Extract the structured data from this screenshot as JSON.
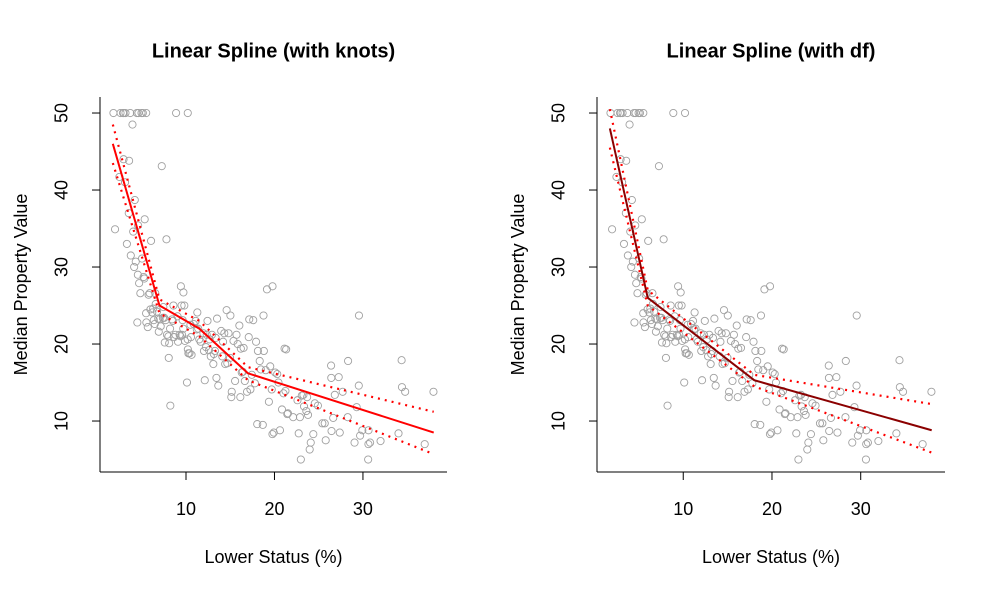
{
  "chart_data": [
    {
      "type": "scatter",
      "title": "Linear Spline (with knots)",
      "xlabel": "Lower Status (%)",
      "ylabel": "Median Property Value",
      "xlim": [
        0.28,
        39.5
      ],
      "ylim": [
        3.38,
        52.08
      ],
      "xticks": [
        10,
        20,
        30
      ],
      "yticks": [
        10,
        20,
        30,
        40,
        50
      ],
      "point_color": "#a0a0a0",
      "x": [
        1.98,
        2.47,
        2.88,
        2.94,
        2.96,
        3.11,
        3.16,
        3.32,
        3.53,
        3.57,
        3.76,
        3.95,
        4.03,
        4.14,
        4.21,
        4.32,
        4.45,
        4.5,
        4.56,
        4.59,
        4.63,
        4.7,
        4.84,
        4.97,
        5.03,
        5.12,
        5.21,
        5.29,
        5.33,
        5.49,
        5.52,
        5.68,
        5.77,
        5.89,
        5.98,
        6.05,
        6.19,
        6.29,
        6.36,
        6.47,
        6.53,
        6.58,
        6.72,
        6.86,
        6.92,
        7.02,
        7.14,
        7.26,
        7.39,
        7.44,
        7.54,
        7.6,
        7.7,
        7.79,
        7.85,
        8.01,
        8.05,
        8.1,
        8.2,
        8.23,
        8.43,
        8.51,
        8.58,
        8.65,
        8.81,
        8.88,
        9.04,
        9.1,
        9.28,
        9.38,
        9.42,
        9.5,
        9.55,
        9.62,
        9.69,
        9.71,
        9.81,
        9.88,
        10.11,
        10.19,
        10.21,
        10.27,
        10.4,
        10.5,
        10.56,
        10.63,
        10.87,
        11.1,
        11.22,
        11.28,
        11.38,
        11.5,
        11.65,
        11.97,
        12.03,
        12.12,
        12.26,
        12.34,
        12.43,
        12.6,
        12.67,
        12.8,
        12.93,
        13.09,
        13.15,
        13.27,
        13.35,
        13.44,
        13.51,
        13.65,
        13.98,
        14.1,
        14.19,
        14.33,
        14.43,
        14.59,
        14.67,
        14.81,
        14.98,
        15.02,
        15.12,
        15.17,
        15.37,
        15.55,
        15.71,
        15.84,
        16.03,
        16.14,
        16.2,
        16.3,
        16.42,
        16.51,
        16.65,
        16.9,
        17.09,
        17.15,
        17.28,
        17.44,
        17.6,
        17.79,
        17.92,
        18.05,
        18.13,
        18.33,
        18.46,
        18.68,
        18.76,
        18.8,
        19.01,
        19.15,
        19.37,
        19.52,
        19.69,
        19.78,
        19.92,
        20.08,
        20.31,
        20.45,
        20.62,
        20.85,
        21.02,
        21.14,
        21.24,
        21.32,
        21.45,
        21.52,
        22.11,
        22.6,
        22.74,
        22.88,
        22.98,
        23.09,
        23.27,
        23.34,
        23.6,
        23.69,
        23.79,
        23.98,
        24.1,
        24.39,
        24.56,
        24.91,
        25.41,
        25.68,
        25.79,
        26.4,
        26.42,
        26.45,
        26.64,
        26.82,
        27.26,
        27.38,
        27.71,
        28.28,
        28.32,
        29.05,
        29.29,
        29.53,
        29.55,
        29.68,
        29.93,
        30.59,
        30.62,
        30.63,
        30.81,
        31.99,
        34.02,
        34.37,
        34.41,
        34.77,
        36.98,
        37.97,
        19.77,
        2.6,
        3.7,
        5.5,
        1.8,
        10.2
      ],
      "values": [
        34.9,
        41.7,
        50,
        44,
        50,
        41,
        50,
        33,
        37,
        43.8,
        31.5,
        48.5,
        34.6,
        30,
        38.7,
        30.7,
        50,
        22.8,
        29,
        35.4,
        50,
        27.9,
        26.6,
        50,
        31.1,
        50,
        28.7,
        28.5,
        36.2,
        24,
        22.8,
        22.2,
        26.4,
        26.6,
        24.5,
        33.4,
        24.1,
        24.6,
        23.1,
        22.6,
        26.6,
        25.2,
        24.2,
        23.3,
        21.6,
        23.2,
        22.3,
        43.1,
        23.4,
        24.8,
        23.4,
        20.2,
        23.1,
        33.6,
        21.2,
        21,
        18.2,
        20.1,
        22,
        12,
        23.2,
        23,
        25,
        20.9,
        21.2,
        50,
        23.6,
        20.3,
        21.2,
        21,
        27.5,
        25,
        21.2,
        23.1,
        22,
        26.7,
        25,
        20.4,
        15,
        20.6,
        19.3,
        18.8,
        18.8,
        22.5,
        20.9,
        18.6,
        22.6,
        23,
        21.9,
        24.1,
        22,
        20.6,
        20.3,
        21.4,
        19.1,
        15.3,
        19.6,
        21.2,
        23,
        19.2,
        20.6,
        18.4,
        21.2,
        17.4,
        18.7,
        19.1,
        20.8,
        15.6,
        23.3,
        14.6,
        21.7,
        18.4,
        20.3,
        21.4,
        17.4,
        24.4,
        17.5,
        21.4,
        18.2,
        23.7,
        13.1,
        13.8,
        20.4,
        15.2,
        21.2,
        20,
        22.4,
        13.1,
        19.4,
        16.3,
        16.4,
        19.5,
        15.2,
        13.8,
        20.9,
        23.2,
        14.1,
        16,
        23.1,
        14.9,
        20.3,
        9.6,
        19.1,
        17.8,
        16.7,
        9.5,
        23.7,
        19.1,
        16.6,
        27.1,
        12.5,
        17.1,
        14.1,
        27.5,
        8.5,
        16.3,
        16.1,
        15,
        8.8,
        11.5,
        13.6,
        19.4,
        13.9,
        19.3,
        10.9,
        11,
        10.5,
        12.7,
        8.4,
        10.5,
        5,
        13.3,
        13.4,
        11.9,
        11.3,
        13.1,
        10.8,
        6.3,
        7.2,
        8.3,
        12.3,
        12,
        9.7,
        9.7,
        7.5,
        17.2,
        15.6,
        8.7,
        10.4,
        13.4,
        15.7,
        8.5,
        13.8,
        10.5,
        17.8,
        7.2,
        11.8,
        14.6,
        23.7,
        8.1,
        8.8,
        5,
        7,
        8.8,
        7.2,
        7.4,
        8.4,
        17.9,
        14.4,
        13.8,
        7,
        13.8,
        8.3,
        50,
        50,
        50,
        50,
        50
      ],
      "lines": [
        {
          "color": "#ff0000",
          "style": "solid",
          "x": [
            1.73,
            7,
            11.5,
            17,
            38
          ],
          "values": [
            46,
            25,
            22,
            16.2,
            8.5
          ]
        },
        {
          "color": "#ff0000",
          "style": "dotted",
          "x": [
            1.73,
            7,
            11.5,
            17,
            38
          ],
          "values": [
            48.5,
            25.8,
            23,
            17,
            11.2
          ]
        },
        {
          "color": "#ff0000",
          "style": "dotted",
          "x": [
            1.73,
            7,
            11.5,
            17,
            38
          ],
          "values": [
            43.5,
            24,
            21,
            15.3,
            5.7
          ]
        }
      ]
    },
    {
      "type": "scatter",
      "title": "Linear Spline (with df)",
      "xlabel": "Lower Status (%)",
      "ylabel": "Median Property Value",
      "xlim": [
        0.28,
        39.5
      ],
      "ylim": [
        3.38,
        52.08
      ],
      "xticks": [
        10,
        20,
        30
      ],
      "yticks": [
        10,
        20,
        30,
        40,
        50
      ],
      "point_color": "#a0a0a0",
      "x": [
        1.98,
        2.47,
        2.88,
        2.94,
        2.96,
        3.11,
        3.16,
        3.32,
        3.53,
        3.57,
        3.76,
        3.95,
        4.03,
        4.14,
        4.21,
        4.32,
        4.45,
        4.5,
        4.56,
        4.59,
        4.63,
        4.7,
        4.84,
        4.97,
        5.03,
        5.12,
        5.21,
        5.29,
        5.33,
        5.49,
        5.52,
        5.68,
        5.77,
        5.89,
        5.98,
        6.05,
        6.19,
        6.29,
        6.36,
        6.47,
        6.53,
        6.58,
        6.72,
        6.86,
        6.92,
        7.02,
        7.14,
        7.26,
        7.39,
        7.44,
        7.54,
        7.6,
        7.7,
        7.79,
        7.85,
        8.01,
        8.05,
        8.1,
        8.2,
        8.23,
        8.43,
        8.51,
        8.58,
        8.65,
        8.81,
        8.88,
        9.04,
        9.1,
        9.28,
        9.38,
        9.42,
        9.5,
        9.55,
        9.62,
        9.69,
        9.71,
        9.81,
        9.88,
        10.11,
        10.19,
        10.21,
        10.27,
        10.4,
        10.5,
        10.56,
        10.63,
        10.87,
        11.1,
        11.22,
        11.28,
        11.38,
        11.5,
        11.65,
        11.97,
        12.03,
        12.12,
        12.26,
        12.34,
        12.43,
        12.6,
        12.67,
        12.8,
        12.93,
        13.09,
        13.15,
        13.27,
        13.35,
        13.44,
        13.51,
        13.65,
        13.98,
        14.1,
        14.19,
        14.33,
        14.43,
        14.59,
        14.67,
        14.81,
        14.98,
        15.02,
        15.12,
        15.17,
        15.37,
        15.55,
        15.71,
        15.84,
        16.03,
        16.14,
        16.2,
        16.3,
        16.42,
        16.51,
        16.65,
        16.9,
        17.09,
        17.15,
        17.28,
        17.44,
        17.6,
        17.79,
        17.92,
        18.05,
        18.13,
        18.33,
        18.46,
        18.68,
        18.76,
        18.8,
        19.01,
        19.15,
        19.37,
        19.52,
        19.69,
        19.78,
        19.92,
        20.08,
        20.31,
        20.45,
        20.62,
        20.85,
        21.02,
        21.14,
        21.24,
        21.32,
        21.45,
        21.52,
        22.11,
        22.6,
        22.74,
        22.88,
        22.98,
        23.09,
        23.27,
        23.34,
        23.6,
        23.69,
        23.79,
        23.98,
        24.1,
        24.39,
        24.56,
        24.91,
        25.41,
        25.68,
        25.79,
        26.4,
        26.42,
        26.45,
        26.64,
        26.82,
        27.26,
        27.38,
        27.71,
        28.28,
        28.32,
        29.05,
        29.29,
        29.53,
        29.55,
        29.68,
        29.93,
        30.59,
        30.62,
        30.63,
        30.81,
        31.99,
        34.02,
        34.37,
        34.41,
        34.77,
        36.98,
        37.97,
        19.77,
        2.6,
        3.7,
        5.5,
        1.8,
        10.2
      ],
      "values": [
        34.9,
        41.7,
        50,
        44,
        50,
        41,
        50,
        33,
        37,
        43.8,
        31.5,
        48.5,
        34.6,
        30,
        38.7,
        30.7,
        50,
        22.8,
        29,
        35.4,
        50,
        27.9,
        26.6,
        50,
        31.1,
        50,
        28.7,
        28.5,
        36.2,
        24,
        22.8,
        22.2,
        26.4,
        26.6,
        24.5,
        33.4,
        24.1,
        24.6,
        23.1,
        22.6,
        26.6,
        25.2,
        24.2,
        23.3,
        21.6,
        23.2,
        22.3,
        43.1,
        23.4,
        24.8,
        23.4,
        20.2,
        23.1,
        33.6,
        21.2,
        21,
        18.2,
        20.1,
        22,
        12,
        23.2,
        23,
        25,
        20.9,
        21.2,
        50,
        23.6,
        20.3,
        21.2,
        21,
        27.5,
        25,
        21.2,
        23.1,
        22,
        26.7,
        25,
        20.4,
        15,
        20.6,
        19.3,
        18.8,
        18.8,
        22.5,
        20.9,
        18.6,
        22.6,
        23,
        21.9,
        24.1,
        22,
        20.6,
        20.3,
        21.4,
        19.1,
        15.3,
        19.6,
        21.2,
        23,
        19.2,
        20.6,
        18.4,
        21.2,
        17.4,
        18.7,
        19.1,
        20.8,
        15.6,
        23.3,
        14.6,
        21.7,
        18.4,
        20.3,
        21.4,
        17.4,
        24.4,
        17.5,
        21.4,
        18.2,
        23.7,
        13.1,
        13.8,
        20.4,
        15.2,
        21.2,
        20,
        22.4,
        13.1,
        19.4,
        16.3,
        16.4,
        19.5,
        15.2,
        13.8,
        20.9,
        23.2,
        14.1,
        16,
        23.1,
        14.9,
        20.3,
        9.6,
        19.1,
        17.8,
        16.7,
        9.5,
        23.7,
        19.1,
        16.6,
        27.1,
        12.5,
        17.1,
        14.1,
        27.5,
        8.5,
        16.3,
        16.1,
        15,
        8.8,
        11.5,
        13.6,
        19.4,
        13.9,
        19.3,
        10.9,
        11,
        10.5,
        12.7,
        8.4,
        10.5,
        5,
        13.3,
        13.4,
        11.9,
        11.3,
        13.1,
        10.8,
        6.3,
        7.2,
        8.3,
        12.3,
        12,
        9.7,
        9.7,
        7.5,
        17.2,
        15.6,
        8.7,
        10.4,
        13.4,
        15.7,
        8.5,
        13.8,
        10.5,
        17.8,
        7.2,
        11.8,
        14.6,
        23.7,
        8.1,
        8.8,
        5,
        7,
        8.8,
        7.2,
        7.4,
        8.4,
        17.9,
        14.4,
        13.8,
        7,
        13.8,
        8.3,
        50,
        50,
        50,
        50,
        50
      ],
      "lines": [
        {
          "color": "#8b0000",
          "style": "solid",
          "x": [
            1.73,
            6,
            18,
            38
          ],
          "values": [
            48,
            26,
            15.3,
            8.8
          ]
        },
        {
          "color": "#ff0000",
          "style": "dotted",
          "x": [
            1.73,
            6,
            18,
            38
          ],
          "values": [
            50.5,
            27,
            16,
            12.2
          ]
        },
        {
          "color": "#ff0000",
          "style": "dotted",
          "x": [
            1.73,
            6,
            18,
            38
          ],
          "values": [
            45.5,
            25,
            14.5,
            5.9
          ]
        }
      ]
    }
  ]
}
